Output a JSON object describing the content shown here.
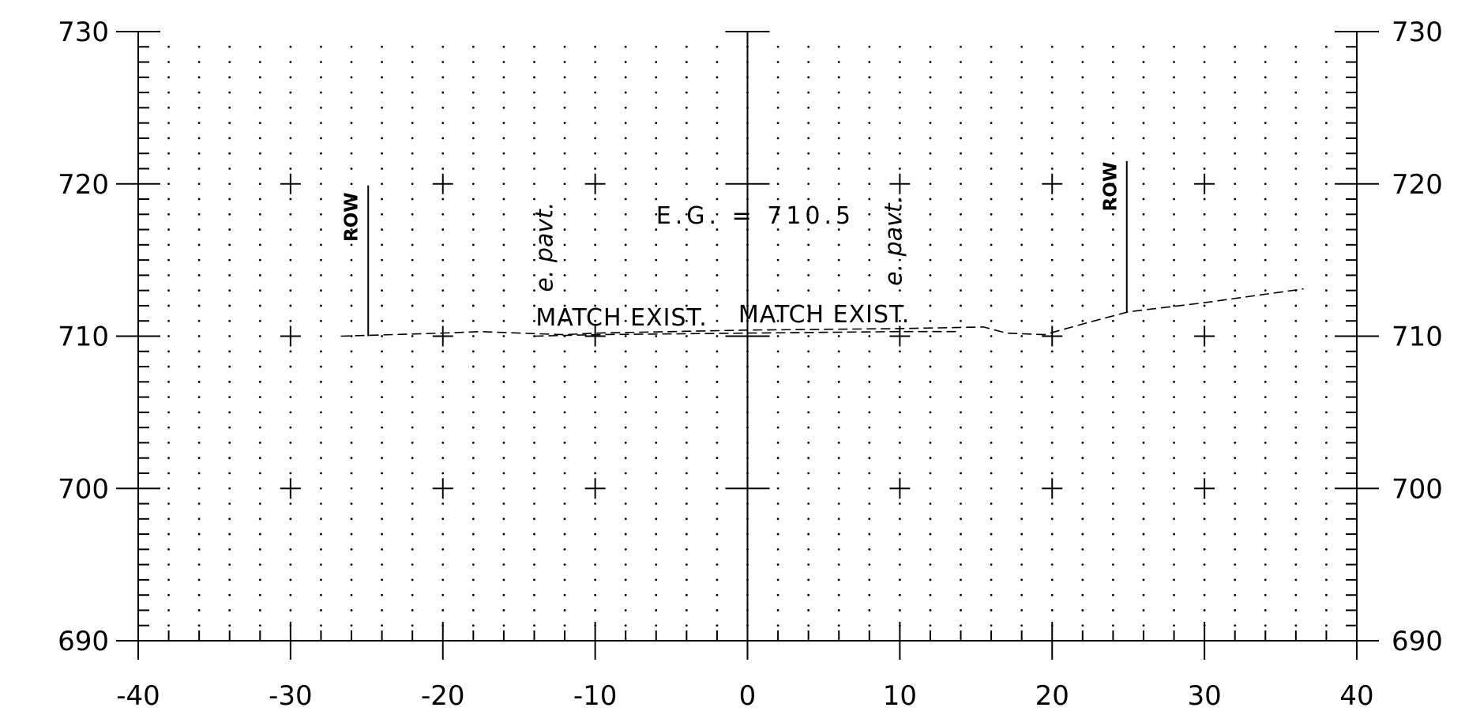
{
  "chart_data": {
    "type": "line",
    "title": "",
    "xlabel": "",
    "ylabel": "",
    "xlim": [
      -40,
      40
    ],
    "ylim": [
      690,
      730
    ],
    "x_ticks": [
      "-40",
      "-30",
      "-20",
      "-10",
      "0",
      "10",
      "20",
      "30",
      "40"
    ],
    "y_ticks": [
      "690",
      "700",
      "710",
      "720",
      "730"
    ],
    "grid": "dotted",
    "series": [
      {
        "style": "dashed",
        "x": [
          -26.7,
          -20,
          -17.5,
          -15,
          -12,
          -10,
          0,
          10,
          15.5,
          17,
          19.5,
          22,
          25,
          30,
          36.5
        ],
        "y": [
          710.0,
          710.2,
          710.3,
          710.2,
          710.1,
          710.2,
          710.4,
          710.5,
          710.6,
          710.2,
          710.1,
          710.8,
          711.6,
          712.2,
          713.1
        ]
      },
      {
        "style": "dashed",
        "x": [
          -14,
          -10,
          0,
          10,
          14
        ],
        "y": [
          710.0,
          710.1,
          710.2,
          710.3,
          710.3
        ]
      }
    ],
    "annotations": {
      "row_left": "ROW",
      "row_right": "ROW",
      "epavt_left": "e. pavt.",
      "epavt_right": "e. pavt.",
      "eg": "E.G. = 710.5",
      "match_left": "MATCH EXIST.",
      "match_right": "MATCH EXIST."
    }
  }
}
